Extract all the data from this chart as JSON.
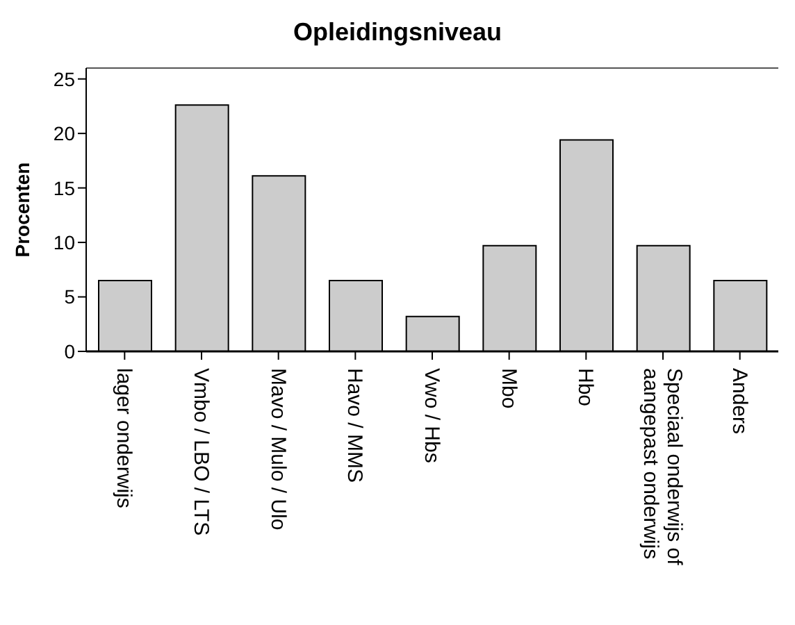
{
  "chart_data": {
    "type": "bar",
    "title": "Opleidingsniveau",
    "ylabel": "Procenten",
    "categories": [
      "lager onderwijs",
      "Vmbo / LBO / LTS",
      "Mavo / Mulo / Ulo",
      "Havo / MMS",
      "Vwo / Hbs",
      "Mbo",
      "Hbo",
      "Speciaal onderwijs of aangepast onderwijs",
      "Anders"
    ],
    "values": [
      6.5,
      22.6,
      16.1,
      6.5,
      3.2,
      9.7,
      19.4,
      9.7,
      6.5
    ],
    "color": "#cccccc",
    "ylim": [
      0,
      26
    ],
    "yticks": [
      0,
      5,
      10,
      15,
      20,
      25
    ],
    "grid": false,
    "legend": false
  }
}
